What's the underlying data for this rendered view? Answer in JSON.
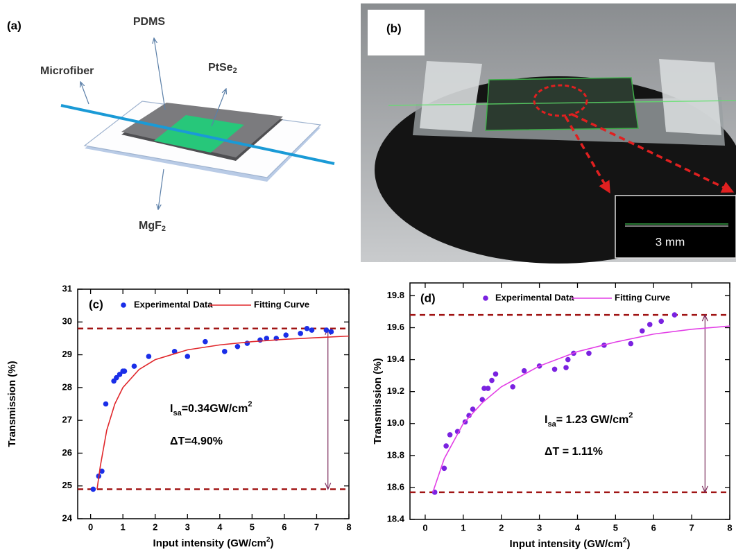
{
  "panel_a": {
    "label": "(a)",
    "pdms": "PDMS",
    "microfiber": "Microfiber",
    "ptse": [
      "PtSe",
      "2"
    ],
    "mgf": [
      "MgF",
      "2"
    ]
  },
  "panel_b": {
    "label": "(b)",
    "scale": "3 mm"
  },
  "chart_data": [
    {
      "type": "scatter",
      "panel_label": "(c)",
      "xlabel": [
        "Input intensity (GW/cm",
        "2",
        ")"
      ],
      "ylabel": "Transmission (%)",
      "xlim": [
        -0.4,
        8
      ],
      "ylim": [
        24,
        31
      ],
      "xticks": [
        0,
        1,
        2,
        3,
        4,
        5,
        6,
        7,
        8
      ],
      "yticks": [
        24,
        25,
        26,
        27,
        28,
        29,
        30,
        31
      ],
      "series": [
        {
          "name": "Experimental Data",
          "style": "markers",
          "color": "#1a2ee8",
          "x": [
            0.08,
            0.25,
            0.35,
            0.47,
            0.72,
            0.8,
            0.9,
            1.0,
            1.05,
            1.35,
            1.8,
            2.6,
            3.0,
            3.55,
            4.15,
            4.55,
            4.85,
            5.25,
            5.45,
            5.75,
            6.05,
            6.5,
            6.7,
            6.85,
            7.3,
            7.45
          ],
          "values": [
            24.9,
            25.3,
            25.45,
            27.5,
            28.2,
            28.3,
            28.4,
            28.5,
            28.5,
            28.65,
            28.95,
            29.1,
            28.95,
            29.4,
            29.1,
            29.25,
            29.35,
            29.45,
            29.5,
            29.5,
            29.6,
            29.65,
            29.8,
            29.75,
            29.75,
            29.7
          ]
        },
        {
          "name": "Fitting Curve",
          "style": "line",
          "color": "#e0262a",
          "x": [
            0.2,
            0.3,
            0.5,
            0.75,
            1,
            1.5,
            2,
            3,
            4,
            5,
            6,
            7,
            8
          ],
          "values": [
            24.9,
            25.6,
            26.7,
            27.5,
            28.0,
            28.55,
            28.85,
            29.15,
            29.3,
            29.4,
            29.47,
            29.52,
            29.57
          ]
        }
      ],
      "reference_lines": {
        "values": [
          29.8,
          24.9
        ],
        "color": "#a01414"
      },
      "arrow": {
        "x": 7.35,
        "values": [
          24.9,
          29.8
        ],
        "color": "#7a2a5a"
      },
      "annotations": [
        [
          "I",
          "sa",
          "=0.34GW/cm",
          "2"
        ],
        "ΔT=4.90%"
      ]
    },
    {
      "type": "scatter",
      "panel_label": "(d)",
      "xlabel": [
        "Input intensity (GW/cm",
        "2",
        ")"
      ],
      "ylabel": "Transmission (%)",
      "xlim": [
        -0.4,
        8
      ],
      "ylim": [
        18.4,
        19.88
      ],
      "xticks": [
        0,
        1,
        2,
        3,
        4,
        5,
        6,
        7,
        8
      ],
      "yticks": [
        18.4,
        18.6,
        18.8,
        {
          "value": 19,
          "label": "19.0"
        },
        19.2,
        19.4,
        19.6,
        19.8
      ],
      "series": [
        {
          "name": "Experimental Data",
          "style": "markers",
          "color": "#7a22e0",
          "x": [
            0.25,
            0.5,
            0.55,
            0.65,
            0.85,
            1.05,
            1.15,
            1.25,
            1.5,
            1.55,
            1.65,
            1.75,
            1.85,
            2.3,
            2.6,
            3.0,
            3.4,
            3.7,
            3.75,
            3.9,
            4.3,
            4.7,
            5.4,
            5.7,
            5.9,
            6.2,
            6.55
          ],
          "values": [
            18.57,
            18.72,
            18.86,
            18.93,
            18.95,
            19.01,
            19.05,
            19.09,
            19.15,
            19.22,
            19.22,
            19.27,
            19.31,
            19.23,
            19.33,
            19.36,
            19.34,
            19.35,
            19.4,
            19.44,
            19.44,
            19.49,
            19.5,
            19.58,
            19.62,
            19.64,
            19.68
          ]
        },
        {
          "name": "Fitting Curve",
          "style": "line",
          "color": "#e23ee6",
          "x": [
            0.2,
            0.5,
            1,
            1.5,
            2,
            3,
            4,
            5,
            6,
            7,
            8
          ],
          "values": [
            18.57,
            18.78,
            19.0,
            19.13,
            19.23,
            19.36,
            19.45,
            19.51,
            19.56,
            19.59,
            19.61
          ]
        }
      ],
      "reference_lines": {
        "values": [
          19.68,
          18.57
        ],
        "color": "#a01414"
      },
      "arrow": {
        "x": 7.35,
        "values": [
          18.57,
          19.68
        ],
        "color": "#7a2a5a"
      },
      "annotations": [
        [
          "I",
          "sa",
          "= 1.23 GW/cm",
          "2"
        ],
        "ΔT = 1.11%"
      ]
    }
  ]
}
